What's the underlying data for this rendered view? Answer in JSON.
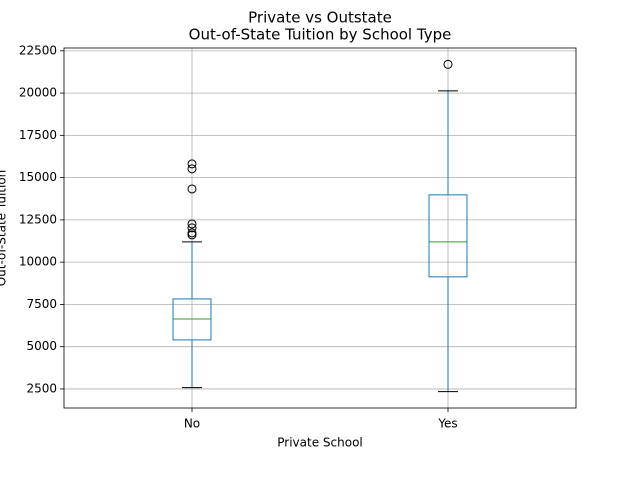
{
  "chart_data": {
    "type": "box",
    "suptitle": "Private vs Outstate",
    "title": "Out-of-State Tuition by School Type",
    "x_label": "Private School",
    "y_label": "Out-of-State Tuition",
    "categories": [
      "No",
      "Yes"
    ],
    "boxes": [
      {
        "whislo": 2580,
        "q1": 5400,
        "med": 6640,
        "q3": 7825,
        "whishi": 11200,
        "fliers": [
          15810,
          15520,
          14330,
          12260,
          12030,
          11730,
          11610
        ]
      },
      {
        "whislo": 2340,
        "q1": 9130,
        "med": 11200,
        "q3": 13980,
        "whishi": 20130,
        "fliers": [
          21700
        ]
      }
    ],
    "ylim": [
      1372,
      22668
    ],
    "yticks": [
      2500,
      5000,
      7500,
      10000,
      12500,
      15000,
      17500,
      20000,
      22500
    ],
    "grid": true,
    "color": "#1f77b4",
    "median_color": "#2ca02c"
  }
}
